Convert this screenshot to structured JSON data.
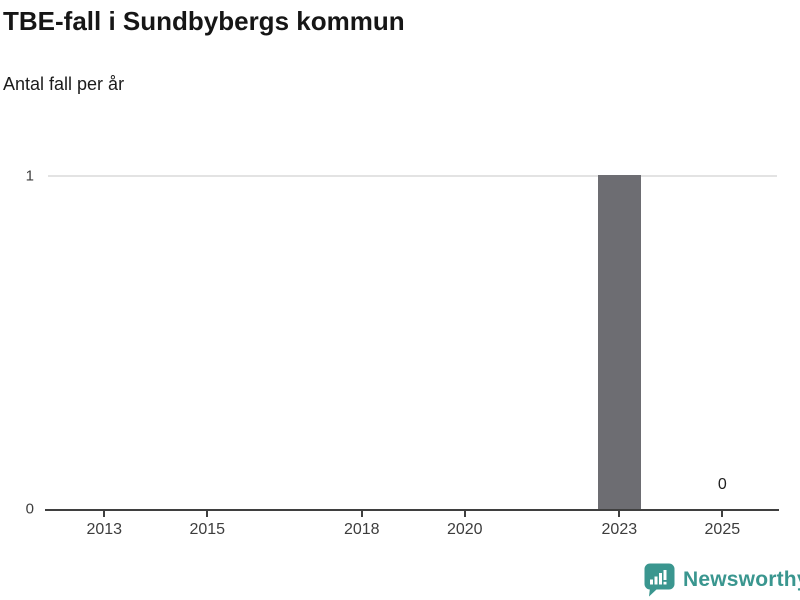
{
  "header": {
    "title": "TBE-fall i Sundbybergs kommun",
    "subtitle": "Antal fall per år"
  },
  "chart_data": {
    "type": "bar",
    "title": "TBE-fall i Sundbybergs kommun",
    "subtitle": "Antal fall per år",
    "xlabel": "",
    "ylabel": "Antal fall per år",
    "x_ticks": [
      "2013",
      "2015",
      "2018",
      "2020",
      "2023",
      "2025"
    ],
    "y_ticks": [
      0,
      1
    ],
    "points": [
      {
        "x": 2023,
        "y": 1
      },
      {
        "x": 2025,
        "y": 0,
        "label": "0"
      }
    ],
    "x_range": [
      2011.85,
      2026.1
    ],
    "ylim": [
      0,
      1
    ],
    "grid": "horizontal-y1-only",
    "legend": "none",
    "colors": {
      "bar": "#6d6d72",
      "axis": "#3f3f3f",
      "gridline": "#e3e3e3",
      "tick_label": "#3d3d3d",
      "data_label": "#1f1f1f"
    }
  },
  "footer": {
    "brand": "Newsworthy",
    "brand_color": "#3a968f",
    "logo_icon": "bar-chart-speech-bubble"
  }
}
